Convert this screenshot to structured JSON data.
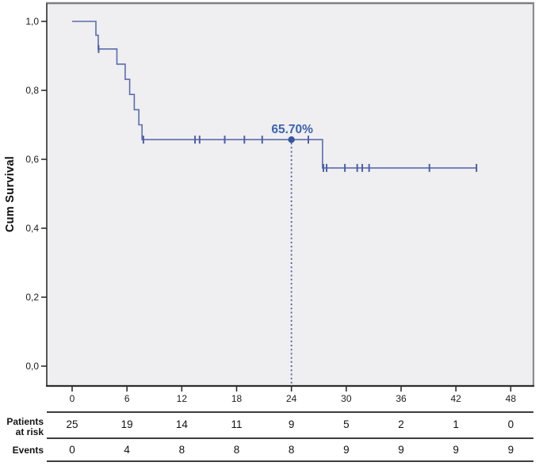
{
  "chart_data": {
    "type": "line",
    "subtype": "kaplan_meier_step_function",
    "title": "",
    "xlabel": "",
    "ylabel": "Cum Survival",
    "xlim": [
      -2.8,
      50.5
    ],
    "ylim": [
      -0.057,
      1.053
    ],
    "grid": false,
    "legend": "none",
    "xtick_values": [
      0,
      6,
      12,
      18,
      24,
      30,
      36,
      42,
      48
    ],
    "xtick_labels": [
      "0",
      "6",
      "12",
      "18",
      "24",
      "30",
      "36",
      "42",
      "48"
    ],
    "ytick_values": [
      0.0,
      0.2,
      0.4,
      0.6,
      0.8,
      1.0
    ],
    "ytick_labels": [
      "0,0",
      "0,2",
      "0,4",
      "0,6",
      "0,8",
      "1,0"
    ],
    "plot_background": "#efeef0",
    "line_color": "#5c6cae",
    "censor_color": "#4c60a8",
    "series": [
      {
        "name": "Cumulative survival",
        "steps": [
          [
            0,
            1.0
          ],
          [
            2.6,
            1.0
          ],
          [
            2.6,
            0.96
          ],
          [
            2.85,
            0.96
          ],
          [
            2.85,
            0.92
          ],
          [
            4.9,
            0.92
          ],
          [
            4.9,
            0.876
          ],
          [
            5.8,
            0.876
          ],
          [
            5.8,
            0.832
          ],
          [
            6.3,
            0.832
          ],
          [
            6.3,
            0.788
          ],
          [
            6.8,
            0.788
          ],
          [
            6.8,
            0.744
          ],
          [
            7.3,
            0.744
          ],
          [
            7.3,
            0.7
          ],
          [
            7.65,
            0.7
          ],
          [
            7.65,
            0.657
          ],
          [
            27.4,
            0.657
          ],
          [
            27.4,
            0.575
          ],
          [
            44.3,
            0.575
          ]
        ],
        "censor_marks": [
          [
            2.9,
            0.92
          ],
          [
            7.8,
            0.657
          ],
          [
            13.45,
            0.657
          ],
          [
            13.95,
            0.657
          ],
          [
            16.7,
            0.657
          ],
          [
            18.85,
            0.657
          ],
          [
            20.8,
            0.657
          ],
          [
            25.85,
            0.657
          ],
          [
            27.5,
            0.575
          ],
          [
            27.85,
            0.575
          ],
          [
            29.85,
            0.575
          ],
          [
            31.2,
            0.575
          ],
          [
            31.75,
            0.575
          ],
          [
            32.5,
            0.575
          ],
          [
            39.1,
            0.575
          ],
          [
            44.25,
            0.575
          ]
        ]
      }
    ],
    "annotation": {
      "x": 24,
      "y": 0.657,
      "label": "65.70%",
      "color": "#3d63b0",
      "marker": "dot",
      "dropline": "dotted-vertical-to-axis"
    }
  },
  "risk_table": {
    "tick_values": [
      0,
      6,
      12,
      18,
      24,
      30,
      36,
      42,
      48
    ],
    "rows": [
      {
        "label_line1": "Patients",
        "label_line2": "at risk",
        "values": [
          "25",
          "19",
          "14",
          "11",
          "9",
          "5",
          "2",
          "1",
          "0"
        ]
      },
      {
        "label_line1": "Events",
        "label_line2": "",
        "values": [
          "0",
          "4",
          "8",
          "8",
          "8",
          "9",
          "9",
          "9",
          "9"
        ]
      }
    ]
  }
}
